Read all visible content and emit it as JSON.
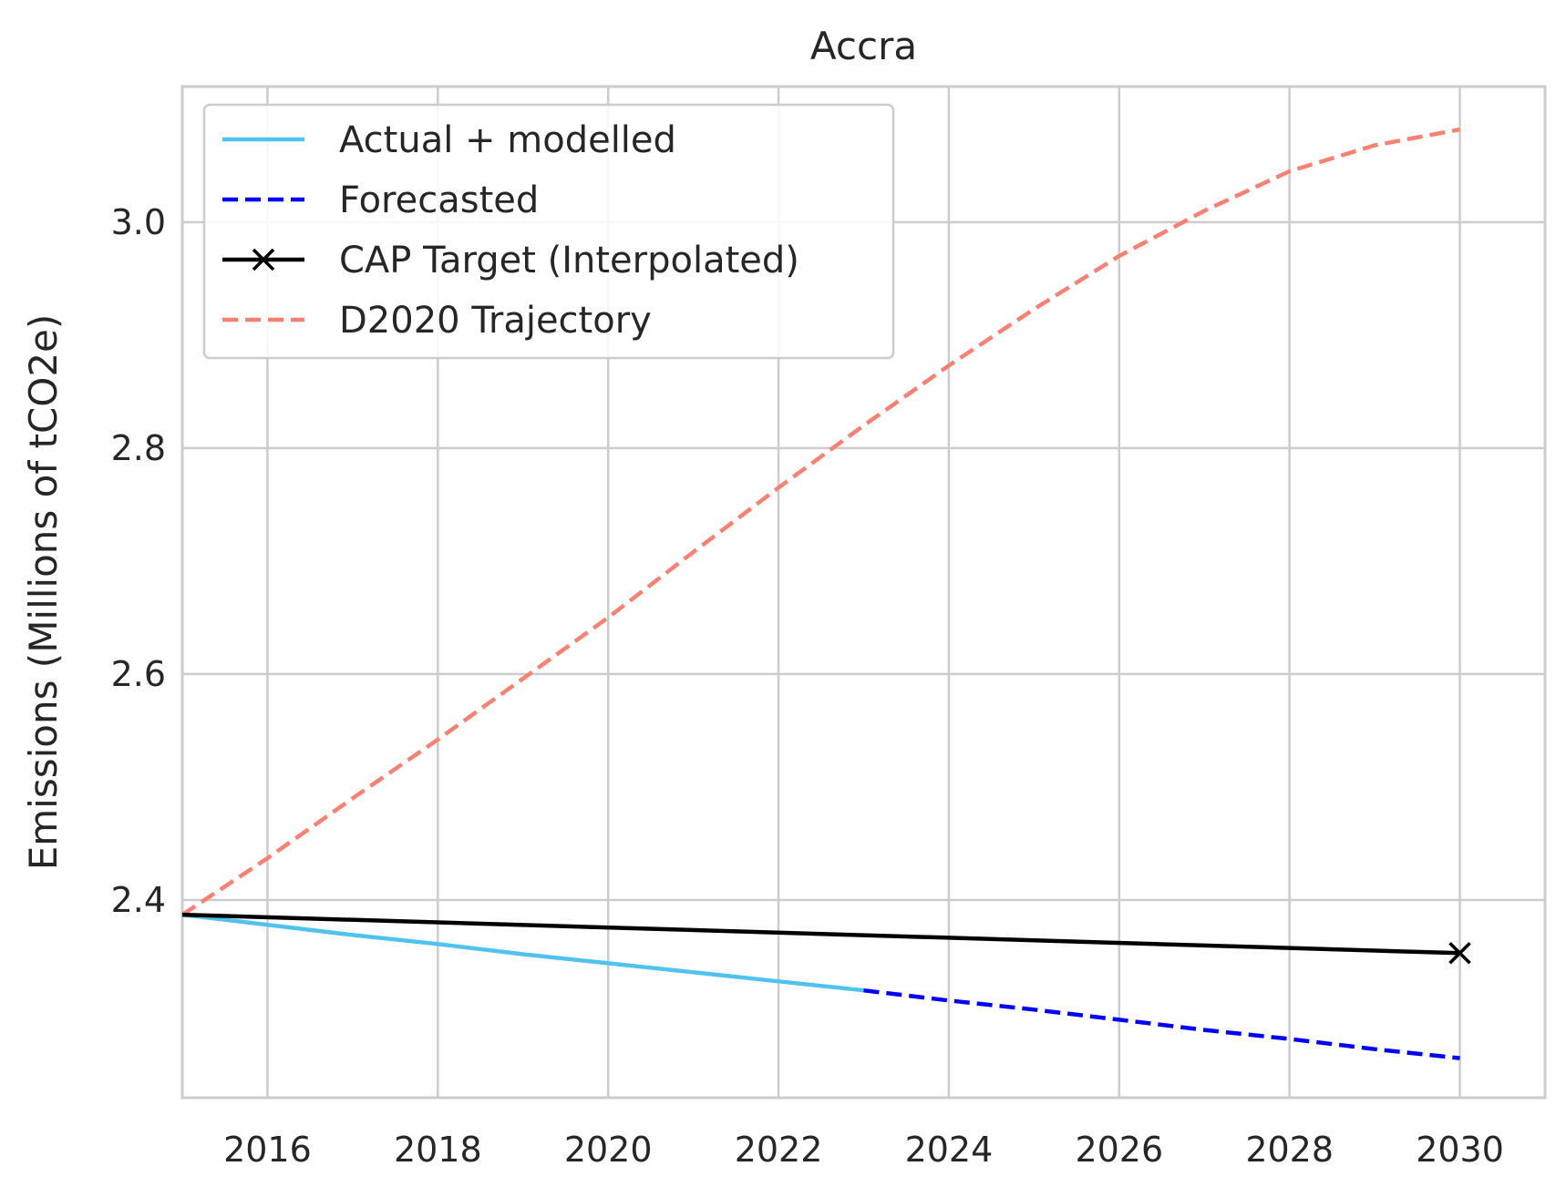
{
  "chart_data": {
    "type": "line",
    "title": "Accra",
    "xlabel": "",
    "ylabel": "Emissions (Millions of tCO2e)",
    "xlim": [
      2015.0,
      2031.0
    ],
    "ylim": [
      2.225,
      3.12
    ],
    "xticks": [
      2016,
      2018,
      2020,
      2022,
      2024,
      2026,
      2028,
      2030
    ],
    "yticks": [
      2.4,
      2.6,
      2.8,
      3.0
    ],
    "xtick_labels": [
      "2016",
      "2018",
      "2020",
      "2022",
      "2024",
      "2026",
      "2028",
      "2030"
    ],
    "ytick_labels": [
      "2.4",
      "2.6",
      "2.8",
      "3.0"
    ],
    "grid": true,
    "legend_position": "top-left",
    "series": [
      {
        "name": "Actual + modelled",
        "color": "#4fc3ee",
        "style": "solid",
        "x": [
          2015,
          2016,
          2017,
          2018,
          2019,
          2020,
          2021,
          2022,
          2023
        ],
        "y": [
          2.387,
          2.378,
          2.369,
          2.361,
          2.352,
          2.344,
          2.336,
          2.328,
          2.32
        ]
      },
      {
        "name": "Forecasted",
        "color": "#0000ff",
        "style": "dashed",
        "x": [
          2023,
          2024,
          2025,
          2026,
          2027,
          2028,
          2029,
          2030
        ],
        "y": [
          2.32,
          2.311,
          2.303,
          2.294,
          2.285,
          2.277,
          2.268,
          2.26
        ]
      },
      {
        "name": "CAP Target (Interpolated)",
        "color": "#000000",
        "style": "solid",
        "marker": "x",
        "x": [
          2015,
          2030
        ],
        "y": [
          2.387,
          2.353
        ]
      },
      {
        "name": "D2020 Trajectory",
        "color": "#fa8072",
        "style": "dashed",
        "x": [
          2015,
          2016,
          2017,
          2018,
          2019,
          2020,
          2021,
          2022,
          2023,
          2024,
          2025,
          2026,
          2027,
          2028,
          2029,
          2030
        ],
        "y": [
          2.387,
          2.437,
          2.49,
          2.542,
          2.596,
          2.65,
          2.708,
          2.765,
          2.82,
          2.873,
          2.923,
          2.97,
          3.01,
          3.045,
          3.068,
          3.082
        ]
      }
    ]
  }
}
